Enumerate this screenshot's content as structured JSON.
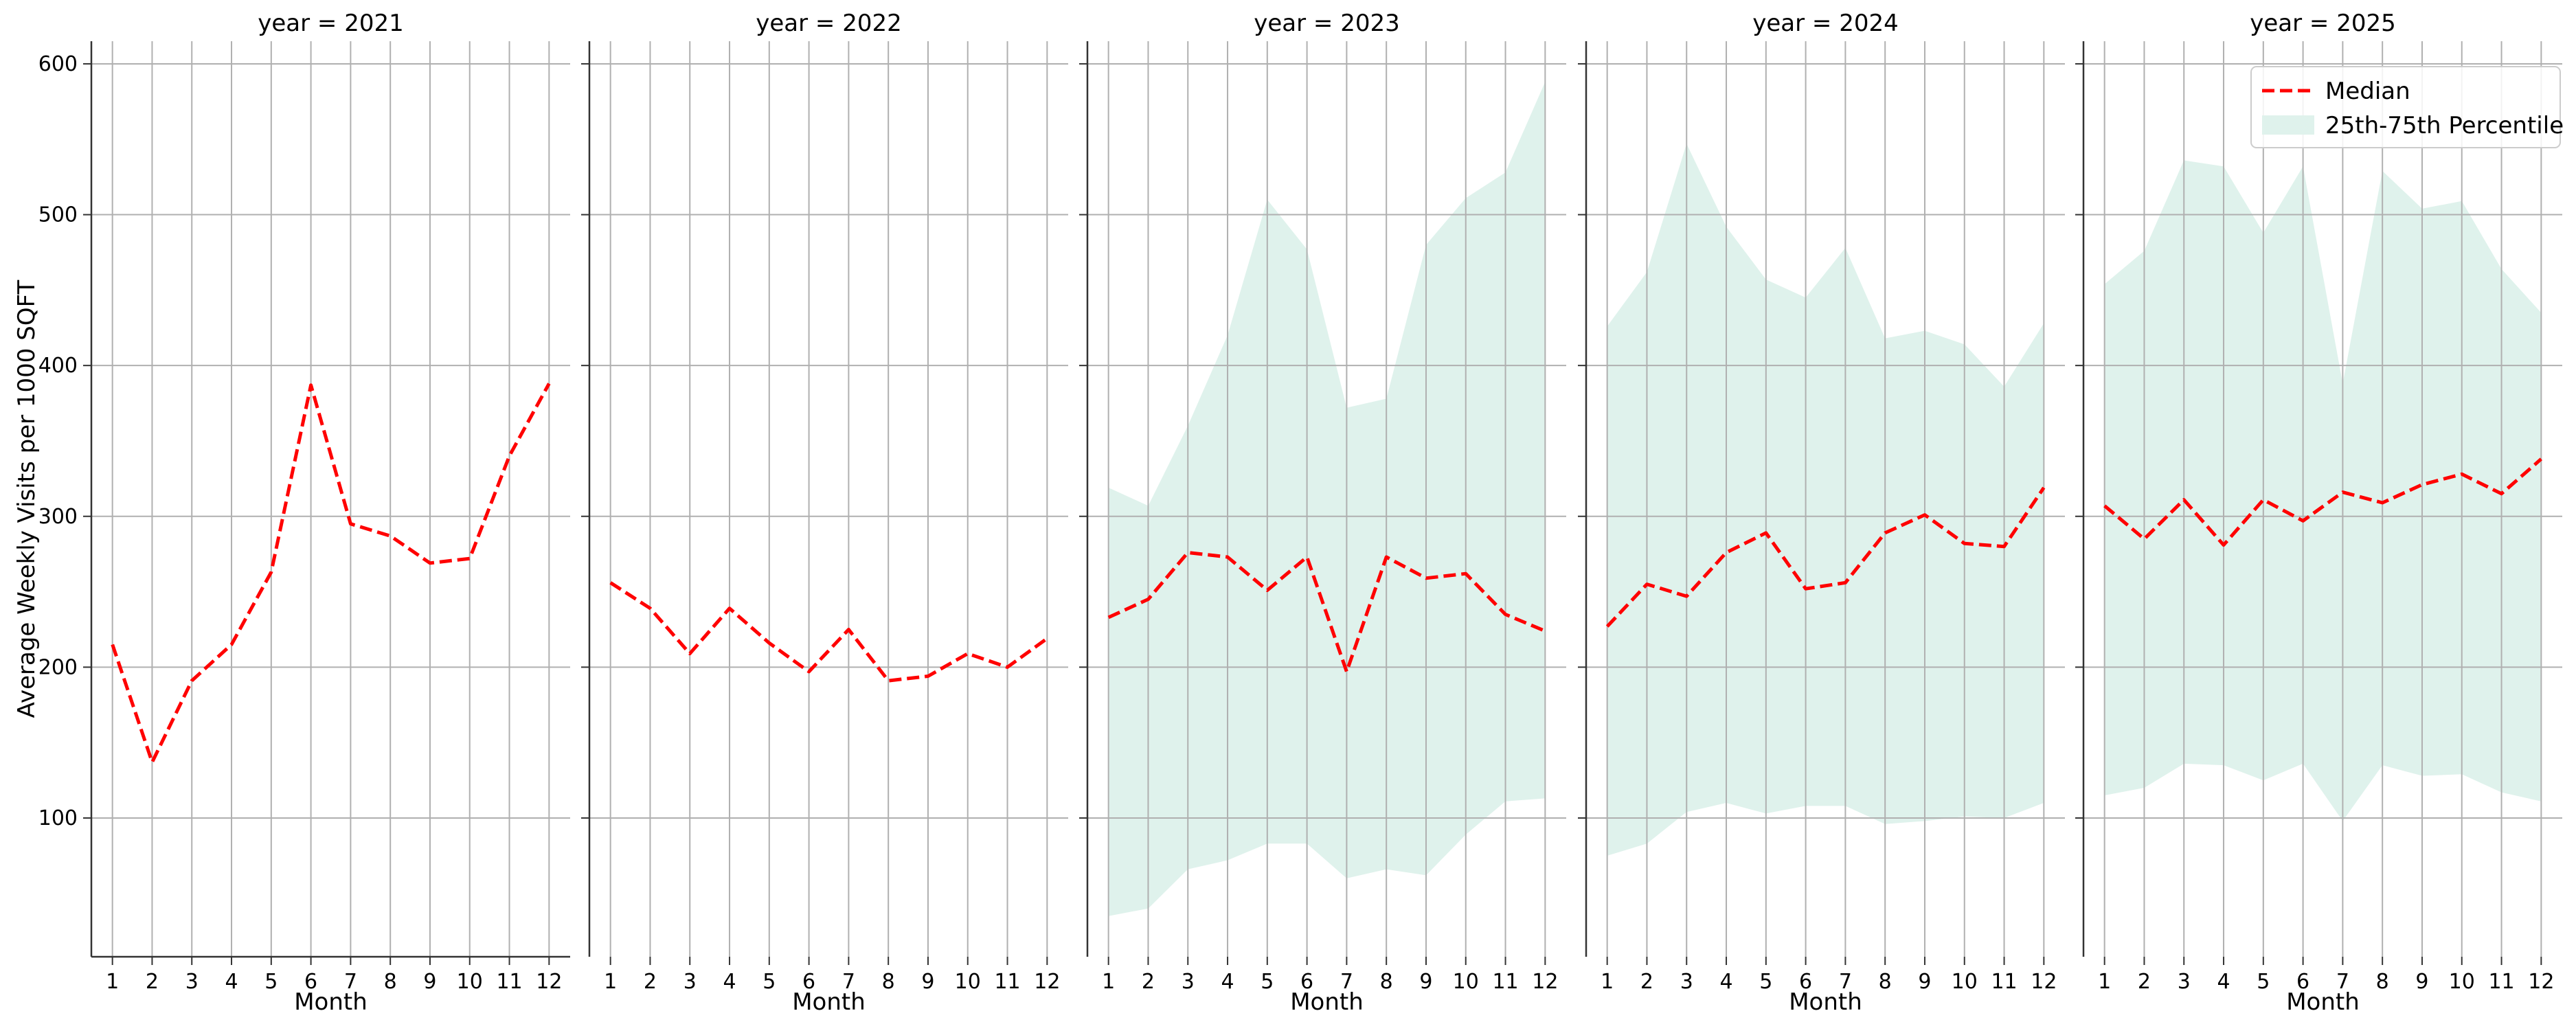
{
  "chart_data": {
    "type": "line",
    "ylabel": "Average Weekly Visits per 1000 SQFT",
    "xlabel": "Month",
    "x": [
      1,
      2,
      3,
      4,
      5,
      6,
      7,
      8,
      9,
      10,
      11,
      12
    ],
    "x_ticks": [
      "1",
      "2",
      "3",
      "4",
      "5",
      "6",
      "7",
      "8",
      "9",
      "10",
      "11",
      "12"
    ],
    "ylim": [
      8,
      615
    ],
    "y_ticks": [
      100,
      200,
      300,
      400,
      500,
      600
    ],
    "grid": true,
    "shared_y": true,
    "legend": {
      "placement": "top-right",
      "panel": "year = 2025",
      "entries": [
        {
          "label": "Median",
          "style": "dashed-line",
          "color": "#ff0000"
        },
        {
          "label": "25th-75th Percentile",
          "style": "filled-band",
          "color": "#dff2ec"
        }
      ]
    },
    "colors": {
      "median": "#ff0000",
      "band": "#dff2ec",
      "grid": "#b0b0b0",
      "axis": "#333333"
    },
    "panels": [
      {
        "title": "year = 2021",
        "median": [
          215,
          137,
          191,
          215,
          263,
          387,
          295,
          287,
          269,
          272,
          340,
          388
        ],
        "p25": null,
        "p75": null
      },
      {
        "title": "year = 2022",
        "median": [
          256,
          239,
          209,
          239,
          216,
          197,
          225,
          191,
          194,
          209,
          200,
          219
        ],
        "p25": null,
        "p75": null
      },
      {
        "title": "year = 2023",
        "median": [
          233,
          245,
          276,
          273,
          251,
          273,
          197,
          273,
          259,
          262,
          235,
          224
        ],
        "p25": [
          35,
          40,
          66,
          72,
          83,
          83,
          60,
          66,
          62,
          89,
          111,
          113
        ],
        "p75": [
          319,
          307,
          360,
          420,
          510,
          477,
          372,
          378,
          480,
          511,
          528,
          588
        ]
      },
      {
        "title": "year = 2024",
        "median": [
          227,
          255,
          247,
          276,
          289,
          252,
          256,
          289,
          301,
          282,
          280,
          319
        ],
        "p25": [
          75,
          83,
          104,
          110,
          103,
          108,
          108,
          96,
          98,
          101,
          100,
          110
        ],
        "p75": [
          426,
          462,
          547,
          492,
          457,
          445,
          478,
          418,
          423,
          414,
          386,
          428
        ]
      },
      {
        "title": "year = 2025",
        "median": [
          307,
          285,
          311,
          281,
          311,
          297,
          316,
          309,
          321,
          328,
          315,
          338
        ],
        "p25": [
          115,
          120,
          136,
          135,
          125,
          136,
          98,
          135,
          128,
          129,
          117,
          111
        ],
        "p75": [
          454,
          476,
          536,
          532,
          488,
          532,
          388,
          529,
          504,
          509,
          464,
          435
        ]
      }
    ]
  }
}
